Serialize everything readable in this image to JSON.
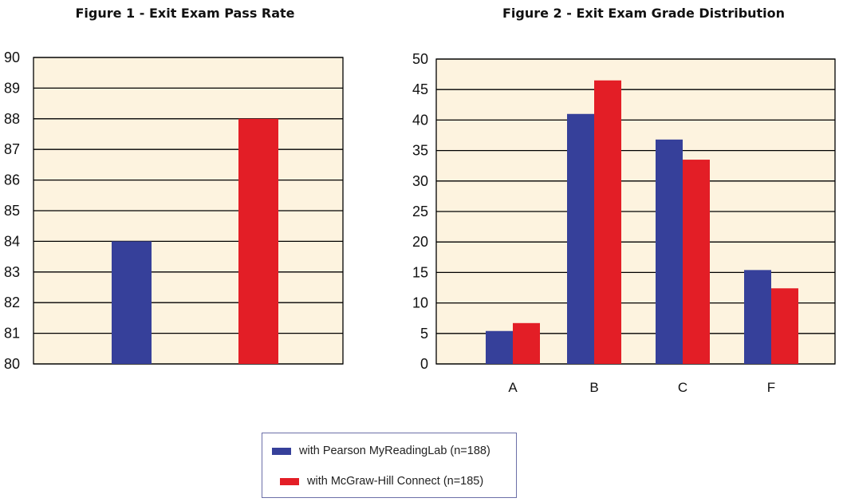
{
  "chart_data": [
    {
      "type": "bar",
      "title": "Figure 1 - Exit Exam Pass Rate",
      "xlabel": "",
      "ylabel": "",
      "ylim": [
        80,
        90
      ],
      "yticks": [
        "80",
        "81",
        "82",
        "83",
        "84",
        "85",
        "86",
        "87",
        "88",
        "89",
        "90"
      ],
      "grid": true,
      "series": [
        {
          "name": "with Pearson MyReadingLab (n=188)",
          "color": "#36409a",
          "values": [
            84
          ]
        },
        {
          "name": "with McGraw-Hill Connect (n=185)",
          "color": "#e31e26",
          "values": [
            88
          ]
        }
      ]
    },
    {
      "type": "bar",
      "title": "Figure 2 - Exit Exam Grade Distribution",
      "xlabel": "",
      "ylabel": "",
      "ylim": [
        0,
        50
      ],
      "yticks": [
        "0",
        "5",
        "10",
        "15",
        "20",
        "25",
        "30",
        "35",
        "40",
        "45",
        "50"
      ],
      "categories": [
        "A",
        "B",
        "C",
        "F"
      ],
      "grid": true,
      "series": [
        {
          "name": "with Pearson MyReadingLab (n=188)",
          "color": "#36409a",
          "values": [
            5.4,
            41.0,
            36.8,
            15.4
          ]
        },
        {
          "name": "with McGraw-Hill Connect (n=185)",
          "color": "#e31e26",
          "values": [
            6.7,
            46.5,
            33.5,
            12.4
          ]
        }
      ]
    }
  ],
  "legend": {
    "placement": "bottom-center",
    "items": [
      {
        "label": "with Pearson MyReadingLab (n=188)",
        "color": "#36409a"
      },
      {
        "label": "with McGraw-Hill Connect (n=185)",
        "color": "#e31e26"
      }
    ]
  },
  "colors": {
    "plot_background": "#fdf3df",
    "gridline": "#000000"
  }
}
